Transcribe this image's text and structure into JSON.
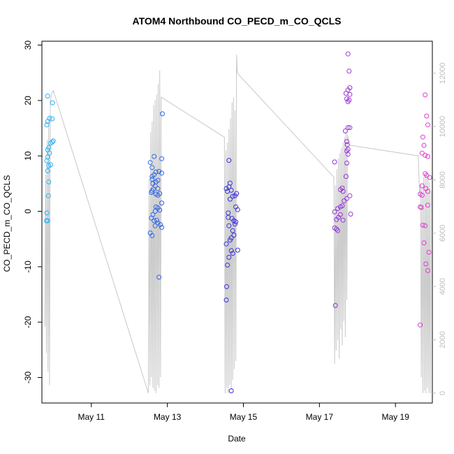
{
  "chart_data": {
    "type": "scatter",
    "title": "ATOM4 Northbound CO_PECD_m_CO_QCLS",
    "xlabel": "Date",
    "ylabel": "CO_PECD_m_CO_QCLS",
    "xlim": [
      9.7,
      19.97
    ],
    "ylim": [
      -34.6,
      30.7
    ],
    "y2lim": [
      -370,
      13200
    ],
    "x_ticks": [
      {
        "value": 11,
        "label": "May 11"
      },
      {
        "value": 13,
        "label": "May 13"
      },
      {
        "value": 15,
        "label": "May 15"
      },
      {
        "value": 17,
        "label": "May 17"
      },
      {
        "value": 19,
        "label": "May 19"
      }
    ],
    "y_ticks": [
      -30,
      -20,
      -10,
      0,
      10,
      20,
      30
    ],
    "y2_ticks": [
      0,
      2000,
      4000,
      6000,
      8000,
      10000,
      12000
    ],
    "grid": false,
    "colors": {
      "points_start": "#29b6f6",
      "points_mid": "#3a2fd8",
      "points_end": "#e63cd0",
      "secondary_line": "#c8c8c8",
      "secondary_axis": "#bdbdbd"
    },
    "series": [
      {
        "type": "scatter",
        "points": [
          [
            9.85,
            20.8
          ],
          [
            9.9,
            16.8
          ],
          [
            9.85,
            16.2
          ],
          [
            9.83,
            15.6
          ],
          [
            9.98,
            19.6
          ],
          [
            9.97,
            16.7
          ],
          [
            10.0,
            12.7
          ],
          [
            9.97,
            12.5
          ],
          [
            9.93,
            12.3
          ],
          [
            9.88,
            11.5
          ],
          [
            9.85,
            11.1
          ],
          [
            9.9,
            10.5
          ],
          [
            9.85,
            9.8
          ],
          [
            9.83,
            9.1
          ],
          [
            9.93,
            8.4
          ],
          [
            9.88,
            8.2
          ],
          [
            9.85,
            7.3
          ],
          [
            9.88,
            5.3
          ],
          [
            9.87,
            2.8
          ],
          [
            9.83,
            -0.3
          ],
          [
            9.82,
            -1.7
          ],
          [
            9.85,
            -1.7
          ],
          [
            12.55,
            8.8
          ],
          [
            12.6,
            7.9
          ],
          [
            12.65,
            9.9
          ],
          [
            12.6,
            6.3
          ],
          [
            12.65,
            6.6
          ],
          [
            12.7,
            7.1
          ],
          [
            12.78,
            7.2
          ],
          [
            12.85,
            9.5
          ],
          [
            12.87,
            17.6
          ],
          [
            12.62,
            5.0
          ],
          [
            12.7,
            5.3
          ],
          [
            12.75,
            5.6
          ],
          [
            12.68,
            4.6
          ],
          [
            12.75,
            4.1
          ],
          [
            12.6,
            3.7
          ],
          [
            12.63,
            4.0
          ],
          [
            12.58,
            3.4
          ],
          [
            12.7,
            3.1
          ],
          [
            12.8,
            3.2
          ],
          [
            12.85,
            1.5
          ],
          [
            12.7,
            0.8
          ],
          [
            12.75,
            0.6
          ],
          [
            12.8,
            0.2
          ],
          [
            12.68,
            0.0
          ],
          [
            12.62,
            -0.6
          ],
          [
            12.58,
            -1.2
          ],
          [
            12.72,
            -1.6
          ],
          [
            12.65,
            -1.7
          ],
          [
            12.75,
            -2.1
          ],
          [
            12.82,
            -2.4
          ],
          [
            12.85,
            -2.9
          ],
          [
            12.68,
            -2.6
          ],
          [
            12.55,
            -3.9
          ],
          [
            12.6,
            -4.4
          ],
          [
            12.78,
            -11.9
          ],
          [
            12.85,
            6.9
          ],
          [
            12.6,
            5.8
          ],
          [
            12.75,
            2.9
          ],
          [
            14.55,
            4.1
          ],
          [
            14.58,
            3.6
          ],
          [
            14.62,
            4.4
          ],
          [
            14.68,
            3.8
          ],
          [
            14.72,
            2.7
          ],
          [
            14.78,
            2.8
          ],
          [
            14.82,
            3.2
          ],
          [
            14.85,
            0.3
          ],
          [
            14.8,
            0.8
          ],
          [
            14.65,
            2.2
          ],
          [
            14.6,
            -0.3
          ],
          [
            14.6,
            -1.1
          ],
          [
            14.7,
            -1.3
          ],
          [
            14.75,
            -1.7
          ],
          [
            14.78,
            -2.3
          ],
          [
            14.62,
            -2.6
          ],
          [
            14.8,
            -1.9
          ],
          [
            14.72,
            -3.5
          ],
          [
            14.75,
            -4.3
          ],
          [
            14.68,
            -4.8
          ],
          [
            14.65,
            -5.2
          ],
          [
            14.55,
            -5.9
          ],
          [
            14.68,
            -7.1
          ],
          [
            14.62,
            -8.3
          ],
          [
            14.72,
            -7.6
          ],
          [
            14.58,
            -9.7
          ],
          [
            14.85,
            -7.0
          ],
          [
            14.56,
            -13.6
          ],
          [
            14.55,
            -16.0
          ],
          [
            14.68,
            -32.4
          ],
          [
            14.65,
            5.1
          ],
          [
            14.62,
            9.2
          ],
          [
            17.75,
            28.4
          ],
          [
            17.78,
            25.3
          ],
          [
            17.8,
            22.3
          ],
          [
            17.75,
            21.9
          ],
          [
            17.7,
            21.3
          ],
          [
            17.8,
            21.1
          ],
          [
            17.72,
            20.3
          ],
          [
            17.78,
            20.1
          ],
          [
            17.75,
            19.8
          ],
          [
            17.8,
            15.1
          ],
          [
            17.75,
            15.1
          ],
          [
            17.68,
            14.5
          ],
          [
            17.72,
            12.6
          ],
          [
            17.73,
            12.0
          ],
          [
            17.75,
            11.2
          ],
          [
            17.72,
            10.9
          ],
          [
            17.75,
            10.3
          ],
          [
            17.4,
            8.9
          ],
          [
            17.72,
            8.7
          ],
          [
            17.7,
            6.3
          ],
          [
            17.6,
            4.2
          ],
          [
            17.55,
            3.9
          ],
          [
            17.62,
            3.6
          ],
          [
            17.72,
            2.3
          ],
          [
            17.8,
            2.8
          ],
          [
            17.65,
            1.9
          ],
          [
            17.6,
            1.0
          ],
          [
            17.55,
            0.8
          ],
          [
            17.48,
            0.5
          ],
          [
            17.4,
            -0.1
          ],
          [
            17.55,
            -0.6
          ],
          [
            17.45,
            -1.5
          ],
          [
            17.62,
            -1.6
          ],
          [
            17.5,
            -1.1
          ],
          [
            17.4,
            -3.0
          ],
          [
            17.45,
            -3.2
          ],
          [
            17.48,
            -3.5
          ],
          [
            17.82,
            -0.5
          ],
          [
            17.42,
            -17.0
          ],
          [
            19.78,
            21.0
          ],
          [
            19.82,
            17.2
          ],
          [
            19.85,
            15.6
          ],
          [
            19.72,
            13.4
          ],
          [
            19.75,
            11.9
          ],
          [
            19.7,
            10.5
          ],
          [
            19.78,
            10.1
          ],
          [
            19.85,
            9.9
          ],
          [
            19.82,
            6.5
          ],
          [
            19.78,
            6.8
          ],
          [
            19.9,
            6.1
          ],
          [
            19.8,
            4.1
          ],
          [
            19.85,
            3.6
          ],
          [
            19.65,
            3.1
          ],
          [
            19.7,
            2.9
          ],
          [
            19.85,
            1.1
          ],
          [
            19.65,
            0.8
          ],
          [
            19.68,
            0.7
          ],
          [
            19.72,
            -2.5
          ],
          [
            19.78,
            -2.6
          ],
          [
            19.75,
            -5.7
          ],
          [
            19.88,
            -7.4
          ],
          [
            19.8,
            -9.5
          ],
          [
            19.85,
            -10.7
          ],
          [
            19.65,
            -20.5
          ],
          [
            19.7,
            4.6
          ]
        ]
      },
      {
        "type": "line",
        "axis": "right",
        "points": [
          [
            9.78,
            2500
          ],
          [
            9.8,
            8200
          ],
          [
            9.82,
            1500
          ],
          [
            9.84,
            9500
          ],
          [
            9.86,
            800
          ],
          [
            9.88,
            10400
          ],
          [
            9.9,
            300
          ],
          [
            9.92,
            10900
          ],
          [
            9.95,
            11200
          ],
          [
            10.0,
            11350
          ],
          [
            12.5,
            0
          ],
          [
            12.52,
            8000
          ],
          [
            12.54,
            300
          ],
          [
            12.56,
            9800
          ],
          [
            12.58,
            600
          ],
          [
            12.6,
            10200
          ],
          [
            12.62,
            200
          ],
          [
            12.64,
            10800
          ],
          [
            12.66,
            100
          ],
          [
            12.68,
            11000
          ],
          [
            12.7,
            0
          ],
          [
            12.72,
            11200
          ],
          [
            12.74,
            300
          ],
          [
            12.76,
            11600
          ],
          [
            12.78,
            200
          ],
          [
            12.8,
            12100
          ],
          [
            12.82,
            600
          ],
          [
            12.84,
            11100
          ],
          [
            14.5,
            9600
          ],
          [
            14.52,
            0
          ],
          [
            14.54,
            9100
          ],
          [
            14.56,
            200
          ],
          [
            14.58,
            9400
          ],
          [
            14.6,
            0
          ],
          [
            14.62,
            9900
          ],
          [
            14.64,
            300
          ],
          [
            14.66,
            10300
          ],
          [
            14.68,
            100
          ],
          [
            14.7,
            10900
          ],
          [
            14.72,
            500
          ],
          [
            14.74,
            11100
          ],
          [
            14.76,
            900
          ],
          [
            14.78,
            10600
          ],
          [
            14.8,
            1200
          ],
          [
            14.82,
            12700
          ],
          [
            14.84,
            12000
          ],
          [
            17.38,
            8100
          ],
          [
            17.4,
            1100
          ],
          [
            17.42,
            7800
          ],
          [
            17.44,
            1600
          ],
          [
            17.46,
            8400
          ],
          [
            17.48,
            2000
          ],
          [
            17.5,
            8800
          ],
          [
            17.52,
            1300
          ],
          [
            17.54,
            9000
          ],
          [
            17.56,
            2400
          ],
          [
            17.58,
            9200
          ],
          [
            17.6,
            1800
          ],
          [
            17.62,
            9400
          ],
          [
            17.64,
            2700
          ],
          [
            17.66,
            9600
          ],
          [
            17.68,
            2100
          ],
          [
            17.7,
            9800
          ],
          [
            17.72,
            3500
          ],
          [
            17.74,
            9700
          ],
          [
            17.76,
            9500
          ],
          [
            17.8,
            9300
          ],
          [
            19.6,
            8900
          ],
          [
            19.62,
            8000
          ],
          [
            19.64,
            7400
          ],
          [
            19.66,
            7800
          ],
          [
            19.68,
            600
          ],
          [
            19.7,
            7700
          ],
          [
            19.72,
            0
          ],
          [
            19.74,
            8100
          ],
          [
            19.76,
            100
          ],
          [
            19.78,
            8200
          ],
          [
            19.8,
            0
          ],
          [
            19.82,
            8300
          ],
          [
            19.84,
            200
          ],
          [
            19.86,
            8100
          ],
          [
            19.88,
            0
          ],
          [
            19.9,
            7900
          ],
          [
            19.92,
            0
          ],
          [
            19.94,
            7600
          ]
        ]
      }
    ]
  }
}
